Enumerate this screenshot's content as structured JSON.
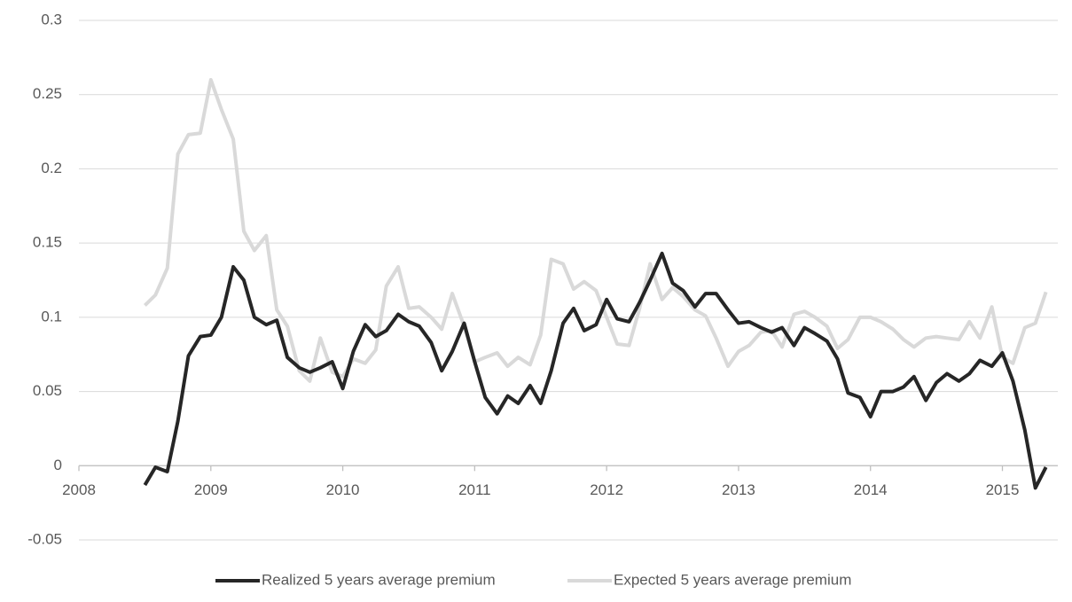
{
  "chart_data": {
    "type": "line",
    "x": [
      2008.5,
      2008.58,
      2008.67,
      2008.75,
      2008.83,
      2008.92,
      2009,
      2009.08,
      2009.17,
      2009.25,
      2009.33,
      2009.42,
      2009.5,
      2009.58,
      2009.67,
      2009.75,
      2009.83,
      2009.92,
      2010,
      2010.08,
      2010.17,
      2010.25,
      2010.33,
      2010.42,
      2010.5,
      2010.58,
      2010.67,
      2010.75,
      2010.83,
      2010.92,
      2011,
      2011.08,
      2011.17,
      2011.25,
      2011.33,
      2011.42,
      2011.5,
      2011.58,
      2011.67,
      2011.75,
      2011.83,
      2011.92,
      2012,
      2012.08,
      2012.17,
      2012.25,
      2012.33,
      2012.42,
      2012.5,
      2012.58,
      2012.67,
      2012.75,
      2012.83,
      2012.92,
      2013,
      2013.08,
      2013.17,
      2013.25,
      2013.33,
      2013.42,
      2013.5,
      2013.58,
      2013.67,
      2013.75,
      2013.83,
      2013.92,
      2014,
      2014.08,
      2014.17,
      2014.25,
      2014.33,
      2014.42,
      2014.5,
      2014.58,
      2014.67,
      2014.75,
      2014.83,
      2014.92,
      2015,
      2015.08,
      2015.17,
      2015.25,
      2015.33
    ],
    "series": [
      {
        "name": "Realized 5 years average premium",
        "color": "#262626",
        "values": [
          -0.013,
          -0.001,
          -0.004,
          0.03,
          0.074,
          0.087,
          0.088,
          0.1,
          0.134,
          0.125,
          0.1,
          0.095,
          0.098,
          0.073,
          0.066,
          0.063,
          0.066,
          0.07,
          0.052,
          0.077,
          0.095,
          0.087,
          0.091,
          0.102,
          0.097,
          0.094,
          0.083,
          0.064,
          0.077,
          0.096,
          0.07,
          0.046,
          0.035,
          0.047,
          0.042,
          0.054,
          0.042,
          0.064,
          0.096,
          0.106,
          0.091,
          0.095,
          0.112,
          0.099,
          0.097,
          0.11,
          0.125,
          0.143,
          0.123,
          0.118,
          0.107,
          0.116,
          0.116,
          0.105,
          0.096,
          0.097,
          0.093,
          0.09,
          0.093,
          0.081,
          0.093,
          0.089,
          0.084,
          0.072,
          0.049,
          0.046,
          0.033,
          0.05,
          0.05,
          0.053,
          0.06,
          0.044,
          0.056,
          0.062,
          0.057,
          0.062,
          0.071,
          0.067,
          0.076,
          0.057,
          0.024,
          -0.015,
          -0.001
        ]
      },
      {
        "name": "Expected 5 years average premium",
        "color": "#d9d9d9",
        "values": [
          0.108,
          0.115,
          0.133,
          0.21,
          0.223,
          0.224,
          0.26,
          0.24,
          0.22,
          0.158,
          0.145,
          0.155,
          0.105,
          0.094,
          0.064,
          0.057,
          0.086,
          0.063,
          0.06,
          0.072,
          0.069,
          0.078,
          0.121,
          0.134,
          0.106,
          0.107,
          0.1,
          0.092,
          0.116,
          0.094,
          0.07,
          0.073,
          0.076,
          0.067,
          0.073,
          0.068,
          0.088,
          0.139,
          0.136,
          0.119,
          0.124,
          0.118,
          0.1,
          0.082,
          0.081,
          0.106,
          0.136,
          0.112,
          0.12,
          0.114,
          0.105,
          0.101,
          0.086,
          0.067,
          0.077,
          0.081,
          0.09,
          0.091,
          0.08,
          0.102,
          0.104,
          0.1,
          0.094,
          0.079,
          0.085,
          0.1,
          0.1,
          0.097,
          0.092,
          0.085,
          0.08,
          0.086,
          0.087,
          0.086,
          0.085,
          0.097,
          0.086,
          0.107,
          0.073,
          0.069,
          0.093,
          0.096,
          0.117
        ]
      }
    ],
    "xlim": [
      2008,
      2015.42
    ],
    "xticks": [
      2008,
      2009,
      2010,
      2011,
      2012,
      2013,
      2014,
      2015
    ],
    "ylim": [
      -0.05,
      0.3
    ],
    "yticks": [
      -0.05,
      0,
      0.05,
      0.1,
      0.15,
      0.2,
      0.25,
      0.3
    ],
    "grid": true,
    "legend": "bottom"
  }
}
